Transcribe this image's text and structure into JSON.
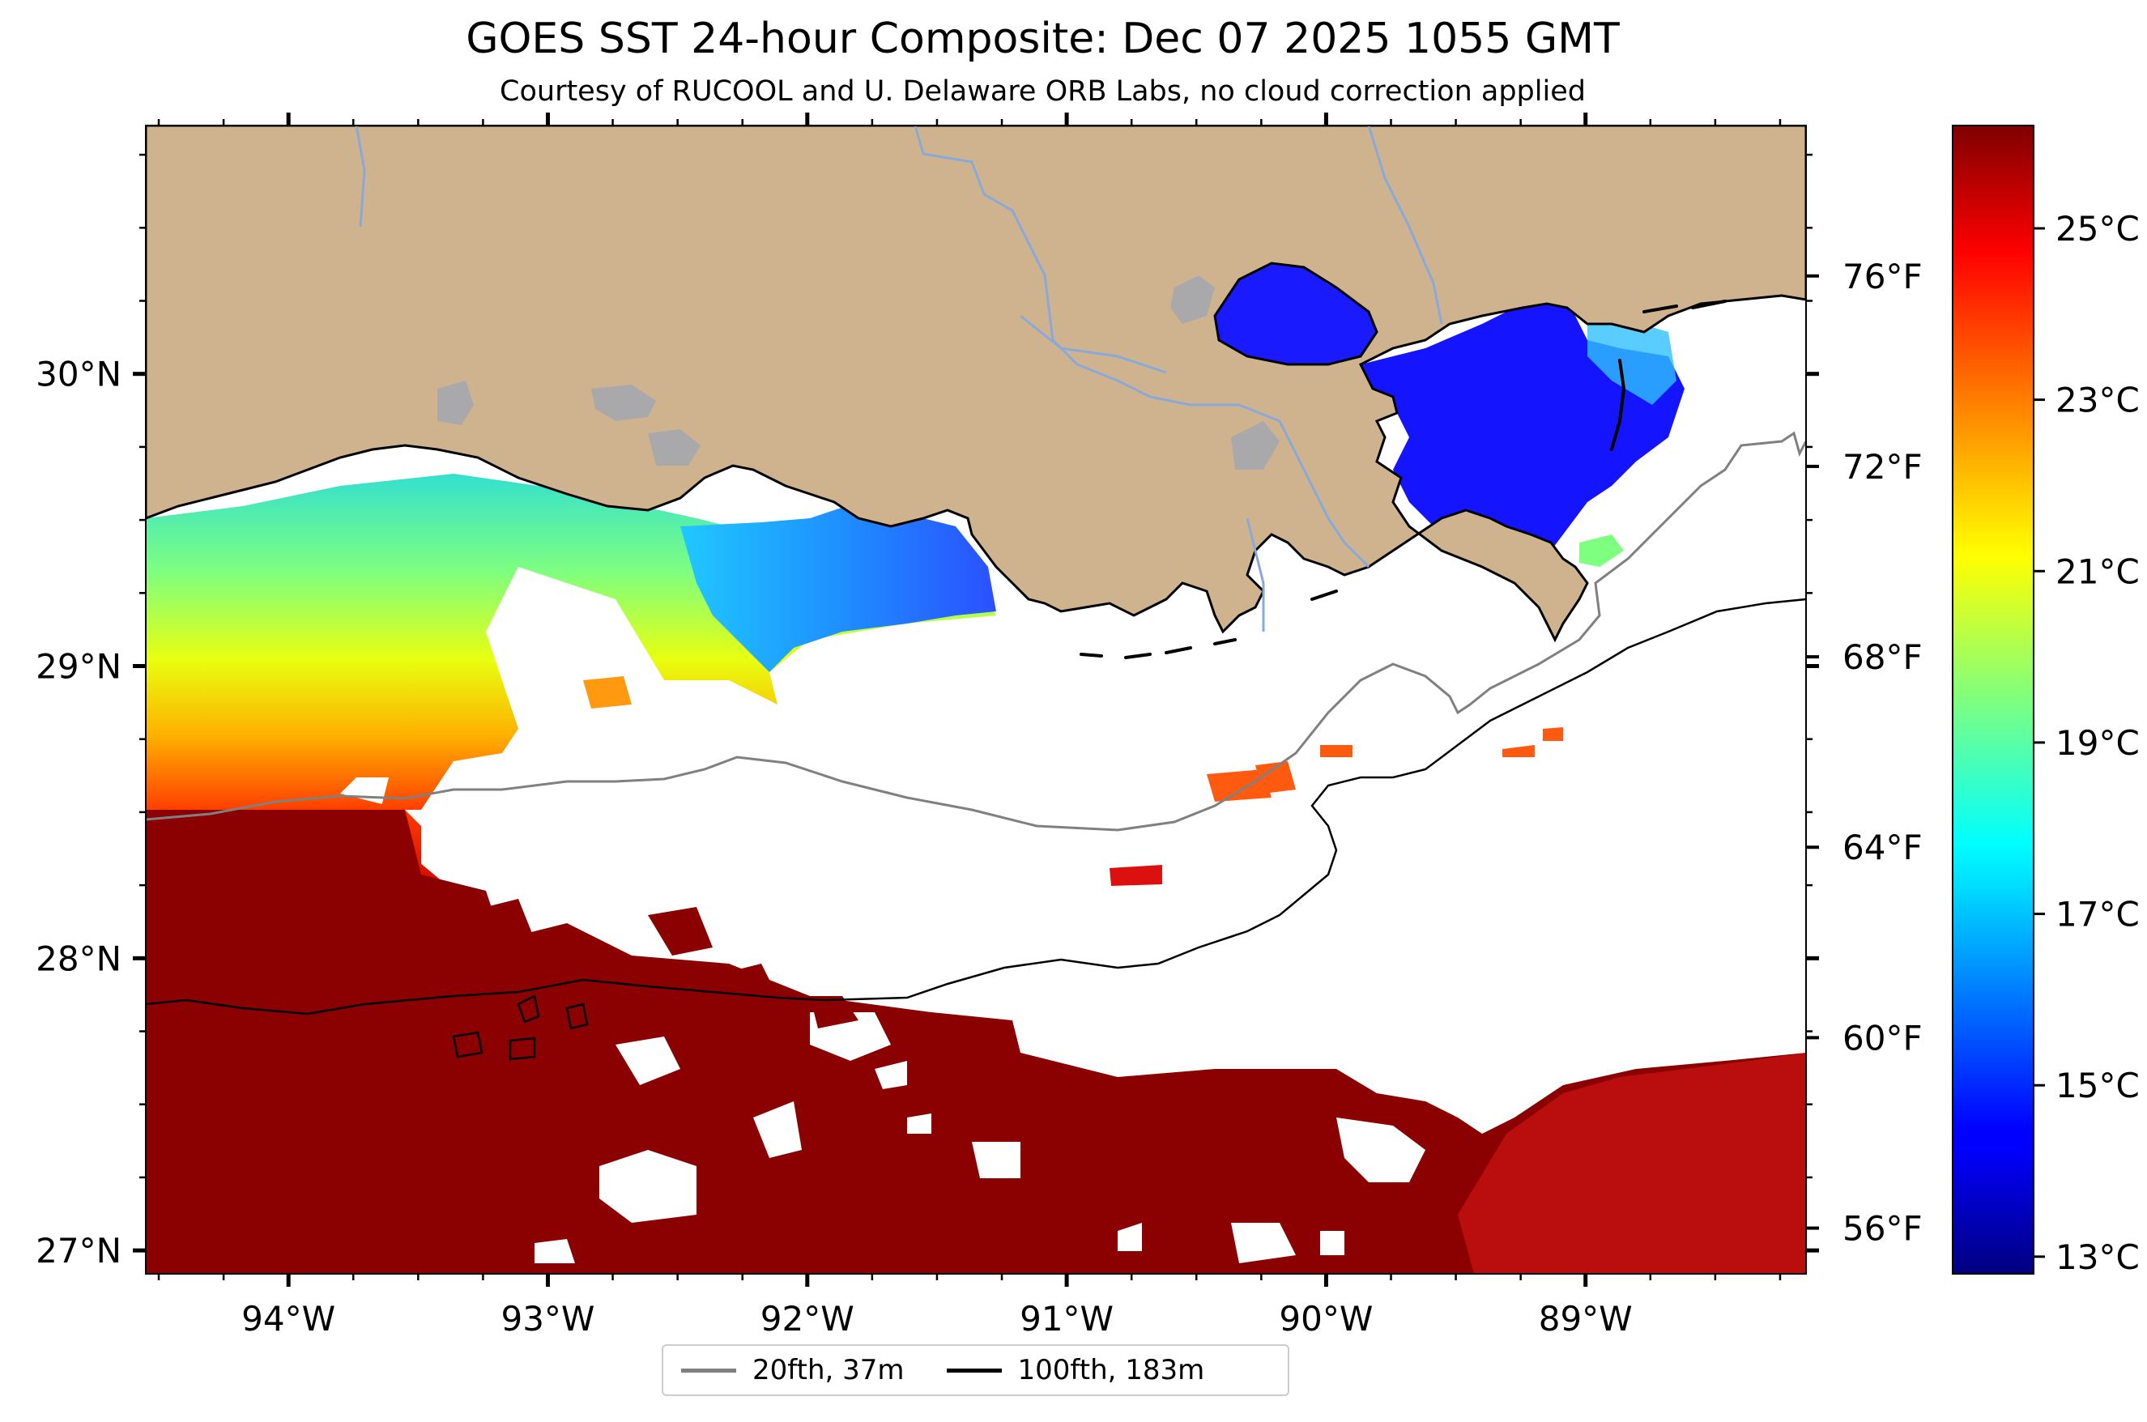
{
  "title": "GOES SST 24-hour Composite: Dec 07 2025 1055 GMT",
  "subtitle": "Courtesy of RUCOOL and U. Delaware ORB Labs, no cloud correction applied",
  "map": {
    "lon_range": [
      -94.55,
      -88.15
    ],
    "lat_range": [
      26.92,
      30.85
    ],
    "longitude_ticks": [
      {
        "value": -94,
        "label": "94°W"
      },
      {
        "value": -93,
        "label": "93°W"
      },
      {
        "value": -92,
        "label": "92°W"
      },
      {
        "value": -91,
        "label": "91°W"
      },
      {
        "value": -90,
        "label": "90°W"
      },
      {
        "value": -89,
        "label": "89°W"
      }
    ],
    "latitude_ticks": [
      {
        "value": 30,
        "label": "30°N"
      },
      {
        "value": 29,
        "label": "29°N"
      },
      {
        "value": 28,
        "label": "28°N"
      },
      {
        "value": 27,
        "label": "27°N"
      }
    ],
    "fahrenheit_ticks": [
      {
        "value": 76,
        "label": "76°F"
      },
      {
        "value": 72,
        "label": "72°F"
      },
      {
        "value": 68,
        "label": "68°F"
      },
      {
        "value": 64,
        "label": "64°F"
      },
      {
        "value": 60,
        "label": "60°F"
      },
      {
        "value": 56,
        "label": "56°F"
      }
    ],
    "colors": {
      "land": "#cfb38e",
      "lake": "#a9a9ab",
      "river": "#89a9d9",
      "cloud_no_data": "#ffffff",
      "coastline": "#000000",
      "isobath_20fth": "#808080",
      "isobath_100fth": "#000000"
    }
  },
  "colorbar": {
    "colormap": "jet",
    "range_c": [
      12.8,
      26.2
    ],
    "ticks": [
      {
        "value": 25,
        "label": "25°C"
      },
      {
        "value": 23,
        "label": "23°C"
      },
      {
        "value": 21,
        "label": "21°C"
      },
      {
        "value": 19,
        "label": "19°C"
      },
      {
        "value": 17,
        "label": "17°C"
      },
      {
        "value": 15,
        "label": "15°C"
      },
      {
        "value": 13,
        "label": "13°C"
      }
    ]
  },
  "legend": {
    "items": [
      {
        "label": "20fth, 37m",
        "color": "#808080"
      },
      {
        "label": "100fth, 183m",
        "color": "#000000"
      }
    ]
  }
}
